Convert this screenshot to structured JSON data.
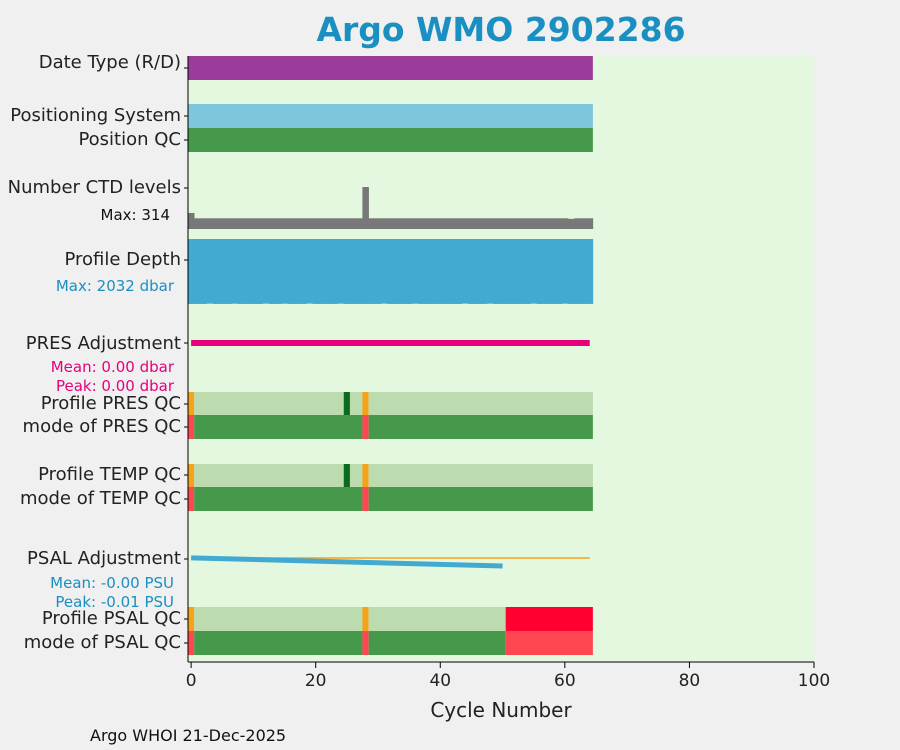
{
  "title": "Argo WMO 2902286",
  "footer": "Argo WHOI 21-Dec-2025",
  "colors": {
    "background": "#e4f8df",
    "date_type": "#9b3c9a",
    "positioning": "#7ec6de",
    "good_qc": "#46994a",
    "light_good": "#bcdbae",
    "dark_green": "#0a6b1f",
    "orange": "#f5a21b",
    "light_red": "#ff4751",
    "red": "#ff0030",
    "levels": "#787878",
    "depth": "#42aad0",
    "pres_adj": "#e6007e",
    "psal_adj": "#42aad0"
  },
  "labels": {
    "date_type": "Date Type (R/D)",
    "positioning_system": "Positioning System",
    "position_qc": "Position QC",
    "number_ctd_levels": "Number CTD levels",
    "levels_max": "Max: 314",
    "profile_depth": "Profile Depth",
    "depth_max": "Max: 2032 dbar",
    "pres_adjustment": "PRES Adjustment",
    "pres_mean": "Mean: 0.00 dbar",
    "pres_peak": "Peak: 0.00 dbar",
    "profile_pres_qc": "Profile PRES QC",
    "mode_pres_qc": "mode of PRES QC",
    "profile_temp_qc": "Profile TEMP QC",
    "mode_temp_qc": "mode of TEMP QC",
    "psal_adjustment": "PSAL Adjustment",
    "psal_mean": "Mean: -0.00 PSU",
    "psal_peak": "Peak: -0.01 PSU",
    "profile_psal_qc": "Profile PSAL QC",
    "mode_psal_qc": "mode of PSAL QC"
  },
  "chart_data": {
    "type": "bar",
    "title": "Argo WMO 2902286",
    "xlabel": "Cycle Number",
    "xlim": [
      -0.5,
      100
    ],
    "x_ticks": [
      0,
      20,
      40,
      60,
      80,
      100
    ],
    "last_cycle": 64,
    "rows": {
      "date_type": [
        {
          "from": -0.5,
          "to": 64.5,
          "color": "date_type"
        }
      ],
      "positioning_system": [
        {
          "from": -0.5,
          "to": 64.5,
          "color": "positioning"
        }
      ],
      "position_qc": [
        {
          "from": -0.5,
          "to": 64.5,
          "color": "good_qc"
        }
      ],
      "profile_pres_qc": [
        {
          "from": -0.5,
          "to": 0.5,
          "color": "orange"
        },
        {
          "from": 0.5,
          "to": 24.5,
          "color": "light_good"
        },
        {
          "from": 24.5,
          "to": 25.5,
          "color": "dark_green"
        },
        {
          "from": 25.5,
          "to": 27.5,
          "color": "light_good"
        },
        {
          "from": 27.5,
          "to": 28.5,
          "color": "orange"
        },
        {
          "from": 28.5,
          "to": 64.5,
          "color": "light_good"
        }
      ],
      "mode_pres_qc": [
        {
          "from": -0.5,
          "to": 0.5,
          "color": "light_red"
        },
        {
          "from": 0.5,
          "to": 27.5,
          "color": "good_qc"
        },
        {
          "from": 27.5,
          "to": 28.5,
          "color": "light_red"
        },
        {
          "from": 28.5,
          "to": 64.5,
          "color": "good_qc"
        }
      ],
      "profile_temp_qc": [
        {
          "from": -0.5,
          "to": 0.5,
          "color": "orange"
        },
        {
          "from": 0.5,
          "to": 24.5,
          "color": "light_good"
        },
        {
          "from": 24.5,
          "to": 25.5,
          "color": "dark_green"
        },
        {
          "from": 25.5,
          "to": 27.5,
          "color": "light_good"
        },
        {
          "from": 27.5,
          "to": 28.5,
          "color": "orange"
        },
        {
          "from": 28.5,
          "to": 64.5,
          "color": "light_good"
        }
      ],
      "mode_temp_qc": [
        {
          "from": -0.5,
          "to": 0.5,
          "color": "light_red"
        },
        {
          "from": 0.5,
          "to": 27.5,
          "color": "good_qc"
        },
        {
          "from": 27.5,
          "to": 28.5,
          "color": "light_red"
        },
        {
          "from": 28.5,
          "to": 64.5,
          "color": "good_qc"
        }
      ],
      "profile_psal_qc": [
        {
          "from": -0.5,
          "to": 0.5,
          "color": "orange"
        },
        {
          "from": 0.5,
          "to": 27.5,
          "color": "light_good"
        },
        {
          "from": 27.5,
          "to": 28.5,
          "color": "orange"
        },
        {
          "from": 28.5,
          "to": 50.5,
          "color": "light_good"
        },
        {
          "from": 50.5,
          "to": 64.5,
          "color": "red"
        }
      ],
      "mode_psal_qc": [
        {
          "from": -0.5,
          "to": 0.5,
          "color": "light_red"
        },
        {
          "from": 0.5,
          "to": 27.5,
          "color": "good_qc"
        },
        {
          "from": 27.5,
          "to": 28.5,
          "color": "light_red"
        },
        {
          "from": 28.5,
          "to": 50.5,
          "color": "good_qc"
        },
        {
          "from": 50.5,
          "to": 64.5,
          "color": "light_red"
        }
      ]
    },
    "ctd_levels": {
      "max": 314,
      "typical": 80,
      "spikes": [
        {
          "cycle": 0,
          "value": 120
        },
        {
          "cycle": 28,
          "value": 314
        }
      ],
      "dips": [
        {
          "cycle": 61,
          "value": 76
        }
      ]
    },
    "profile_depth": {
      "max": 2032,
      "typical": 2000,
      "shallow": [
        {
          "cycle": 3,
          "value": 1990
        },
        {
          "cycle": 7,
          "value": 1992
        },
        {
          "cycle": 12,
          "value": 1990
        },
        {
          "cycle": 15,
          "value": 1993
        },
        {
          "cycle": 19,
          "value": 1989
        },
        {
          "cycle": 24,
          "value": 1991
        },
        {
          "cycle": 31,
          "value": 1990
        },
        {
          "cycle": 36,
          "value": 1992
        },
        {
          "cycle": 44,
          "value": 1989
        },
        {
          "cycle": 48,
          "value": 1991
        },
        {
          "cycle": 55,
          "value": 1990
        },
        {
          "cycle": 60,
          "value": 1992
        }
      ]
    },
    "pres_adjustment": {
      "mean": 0.0,
      "peak": 0.0,
      "from": 0,
      "to": 64,
      "values": [
        0.0,
        0.0
      ]
    },
    "psal_adjustment": {
      "mean": -0.0,
      "peak": -0.01,
      "from": 0,
      "to": 50,
      "values": [
        -0.001,
        -0.01
      ],
      "raw_line_to": 64
    }
  }
}
